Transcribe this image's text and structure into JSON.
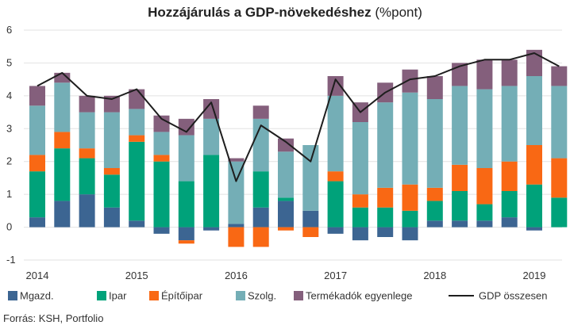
{
  "title": {
    "main": "Hozzájárulás a GDP-növekedéshez",
    "suffix": " (%pont)"
  },
  "source": "Forrás: KSH, Portfolio",
  "chart_data": {
    "type": "bar",
    "stacked": true,
    "ylim": [
      -1,
      6
    ],
    "yticks": [
      -1,
      0,
      1,
      2,
      3,
      4,
      5,
      6
    ],
    "year_labels": [
      "2014",
      "2015",
      "2016",
      "2017",
      "2018",
      "2019"
    ],
    "categories": [
      "2014Q1",
      "2014Q2",
      "2014Q3",
      "2014Q4",
      "2015Q1",
      "2015Q2",
      "2015Q3",
      "2015Q4",
      "2016Q1",
      "2016Q2",
      "2016Q3",
      "2016Q4",
      "2017Q1",
      "2017Q2",
      "2017Q3",
      "2017Q4",
      "2018Q1",
      "2018Q2",
      "2018Q3",
      "2018Q4",
      "2019Q1",
      "2019Q2"
    ],
    "series": [
      {
        "name": "Mgazd.",
        "color": "#3c6592",
        "values": [
          0.3,
          0.8,
          1.0,
          0.6,
          0.2,
          -0.2,
          -0.4,
          -0.1,
          0.1,
          0.6,
          0.8,
          0.5,
          -0.2,
          -0.4,
          -0.3,
          -0.4,
          0.2,
          0.2,
          0.2,
          0.3,
          -0.1,
          0.0
        ]
      },
      {
        "name": "Ipar",
        "color": "#00a27a",
        "values": [
          1.4,
          1.6,
          1.1,
          1.0,
          2.4,
          2.0,
          1.4,
          2.2,
          0.0,
          1.1,
          0.1,
          0.0,
          1.4,
          0.6,
          0.6,
          0.5,
          0.6,
          0.9,
          0.5,
          0.8,
          1.3,
          0.9
        ]
      },
      {
        "name": "Építőipar",
        "color": "#f96814",
        "values": [
          0.5,
          0.5,
          0.3,
          0.2,
          0.2,
          0.2,
          -0.1,
          0.0,
          -0.6,
          -0.6,
          -0.1,
          -0.3,
          0.3,
          0.4,
          0.6,
          0.8,
          0.4,
          0.8,
          1.1,
          0.9,
          1.2,
          1.2
        ]
      },
      {
        "name": "Szolg.",
        "color": "#74aeb6",
        "values": [
          1.5,
          1.5,
          1.1,
          1.7,
          0.8,
          0.7,
          1.4,
          1.1,
          1.9,
          1.6,
          1.4,
          2.0,
          2.3,
          2.2,
          2.6,
          2.8,
          2.7,
          2.4,
          2.4,
          2.3,
          2.1,
          2.2
        ]
      },
      {
        "name": "Termékadók egyenlege",
        "color": "#845f7c",
        "values": [
          0.6,
          0.3,
          0.5,
          0.5,
          0.6,
          0.5,
          0.5,
          0.6,
          0.1,
          0.4,
          0.4,
          0.0,
          0.6,
          0.6,
          0.6,
          0.7,
          0.7,
          0.7,
          0.9,
          0.8,
          0.8,
          0.6
        ]
      },
      {
        "name": "GDP összesen",
        "type": "line",
        "color": "#1e1e1e",
        "values": [
          4.3,
          4.7,
          4.0,
          3.9,
          4.2,
          3.3,
          2.9,
          3.8,
          1.4,
          3.1,
          2.6,
          2.0,
          4.5,
          3.5,
          4.1,
          4.5,
          4.6,
          4.9,
          5.1,
          5.1,
          5.3,
          4.9
        ]
      }
    ]
  }
}
